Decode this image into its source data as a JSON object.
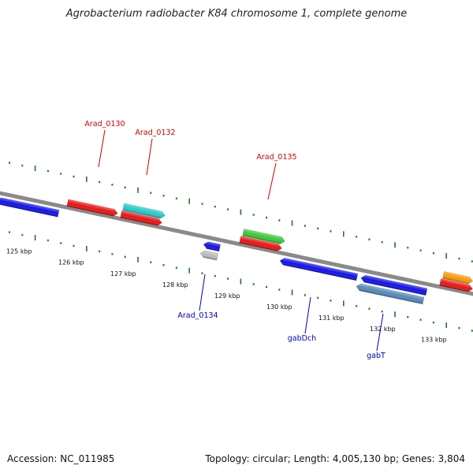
{
  "title": "Agrobacterium radiobacter K84 chromosome 1, complete genome",
  "footer": {
    "accession": "Accession: NC_011985",
    "stats": "Topology: circular; Length: 4,005,130 bp; Genes: 3,804"
  },
  "colors": {
    "forward_label": "#cc0000",
    "reverse_label": "#0000bb",
    "tick": "#1e7a1e",
    "backbone": "#8a8a8a"
  },
  "kbp_labels": [
    "125 kbp",
    "126 kbp",
    "127 kbp",
    "128 kbp",
    "129 kbp",
    "130 kbp",
    "131 kbp",
    "132 kbp",
    "133 kbp"
  ],
  "gene_labels": [
    {
      "text": "Arad_0130",
      "strand": "forward"
    },
    {
      "text": "Arad_0132",
      "strand": "forward"
    },
    {
      "text": "Arad_0135",
      "strand": "forward"
    },
    {
      "text": "Arad_0134",
      "strand": "reverse"
    },
    {
      "text": "gabDch",
      "strand": "reverse"
    },
    {
      "text": "gabT",
      "strand": "reverse"
    }
  ],
  "features": [
    {
      "strand": "reverse",
      "color": "#1010ee",
      "lane": 0
    },
    {
      "strand": "forward",
      "color": "#ee1111",
      "lane": 0
    },
    {
      "strand": "forward",
      "color": "#22cccc",
      "lane": 1
    },
    {
      "strand": "forward",
      "color": "#ee1111",
      "lane": 0
    },
    {
      "strand": "reverse",
      "color": "#1010ee",
      "lane": 0
    },
    {
      "strand": "reverse",
      "color": "#bbbbbb",
      "lane": 1
    },
    {
      "strand": "forward",
      "color": "#33cc33",
      "lane": 1
    },
    {
      "strand": "forward",
      "color": "#ee1111",
      "lane": 0
    },
    {
      "strand": "reverse",
      "color": "#1010ee",
      "lane": 0
    },
    {
      "strand": "reverse",
      "color": "#1010ee",
      "lane": 0
    },
    {
      "strand": "reverse",
      "color": "#5588bb",
      "lane": 1
    },
    {
      "strand": "forward",
      "color": "#ff9900",
      "lane": 1
    },
    {
      "strand": "forward",
      "color": "#ee1111",
      "lane": 0
    }
  ]
}
